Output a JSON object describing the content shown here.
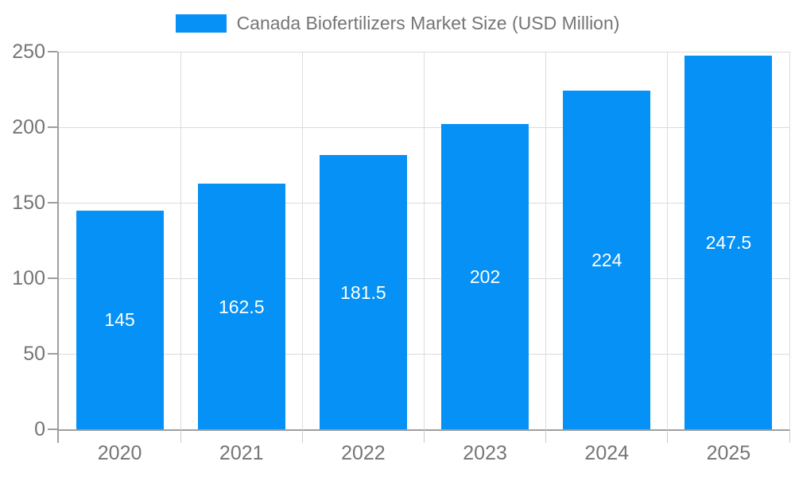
{
  "colors": {
    "bar": "#0591F5",
    "axis": "#9E9E9E",
    "grid": "#DCDCDC",
    "tick": "#C9C9C9",
    "text": "#757575",
    "value_label": "#FFFFFF",
    "background": "#FFFFFF"
  },
  "chart_data": {
    "type": "bar",
    "title": "Canada Biofertilizers Market Size (USD Million)",
    "categories": [
      "2020",
      "2021",
      "2022",
      "2023",
      "2024",
      "2025"
    ],
    "values": [
      145,
      162.5,
      181.5,
      202,
      224,
      247.5
    ],
    "xlabel": "",
    "ylabel": "",
    "ylim": [
      0,
      250
    ],
    "yticks": [
      0,
      50,
      100,
      150,
      200,
      250
    ],
    "grid": true,
    "legend_position": "top",
    "value_label_position": "inside-center"
  }
}
